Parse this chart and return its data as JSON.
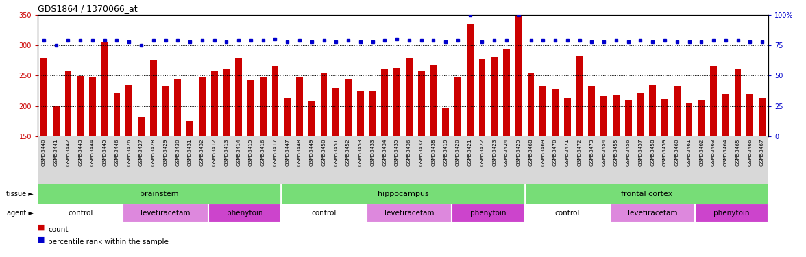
{
  "title": "GDS1864 / 1370066_at",
  "samples": [
    "GSM53440",
    "GSM53441",
    "GSM53442",
    "GSM53443",
    "GSM53444",
    "GSM53445",
    "GSM53446",
    "GSM53426",
    "GSM53427",
    "GSM53428",
    "GSM53429",
    "GSM53430",
    "GSM53431",
    "GSM53432",
    "GSM53412",
    "GSM53413",
    "GSM53414",
    "GSM53415",
    "GSM53416",
    "GSM53417",
    "GSM53447",
    "GSM53448",
    "GSM53449",
    "GSM53450",
    "GSM53451",
    "GSM53452",
    "GSM53453",
    "GSM53433",
    "GSM53434",
    "GSM53435",
    "GSM53436",
    "GSM53437",
    "GSM53438",
    "GSM53419",
    "GSM53420",
    "GSM53421",
    "GSM53422",
    "GSM53423",
    "GSM53424",
    "GSM53425",
    "GSM53468",
    "GSM53469",
    "GSM53470",
    "GSM53471",
    "GSM53472",
    "GSM53473",
    "GSM53454",
    "GSM53455",
    "GSM53456",
    "GSM53457",
    "GSM53458",
    "GSM53459",
    "GSM53460",
    "GSM53461",
    "GSM53462",
    "GSM53463",
    "GSM53464",
    "GSM53465",
    "GSM53466",
    "GSM53467"
  ],
  "count_values": [
    280,
    200,
    258,
    249,
    248,
    305,
    222,
    235,
    183,
    276,
    232,
    244,
    175,
    248,
    259,
    261,
    280,
    243,
    247,
    265,
    213,
    248,
    209,
    255,
    230,
    244,
    225,
    225,
    261,
    263,
    280,
    258,
    268,
    198,
    248,
    335,
    278,
    281,
    293,
    352,
    255,
    234,
    228,
    213,
    283,
    232,
    217,
    219,
    210,
    222,
    235,
    212,
    233,
    205,
    210,
    265,
    220,
    261,
    220,
    213
  ],
  "percentile_values": [
    79,
    75,
    79,
    79,
    79,
    79,
    79,
    78,
    75,
    79,
    79,
    79,
    78,
    79,
    79,
    78,
    79,
    79,
    79,
    80,
    78,
    79,
    78,
    79,
    78,
    79,
    78,
    78,
    79,
    80,
    79,
    79,
    79,
    78,
    79,
    100,
    78,
    79,
    79,
    100,
    79,
    79,
    79,
    79,
    79,
    78,
    78,
    79,
    78,
    79,
    78,
    79,
    78,
    78,
    78,
    79,
    79,
    79,
    78,
    78
  ],
  "ylim_left": [
    150,
    350
  ],
  "ylim_right": [
    0,
    100
  ],
  "yticks_left": [
    150,
    200,
    250,
    300,
    350
  ],
  "yticks_right": [
    0,
    25,
    50,
    75,
    100
  ],
  "bar_color": "#cc0000",
  "dot_color": "#0000cc",
  "gridline_values": [
    200,
    250,
    300
  ],
  "tissue_regions": [
    {
      "label": "brainstem",
      "start": 0,
      "end": 20
    },
    {
      "label": "hippocampus",
      "start": 20,
      "end": 40
    },
    {
      "label": "frontal cortex",
      "start": 40,
      "end": 60
    }
  ],
  "agent_regions": [
    {
      "label": "control",
      "start": 0,
      "end": 7,
      "color": "#ffffff"
    },
    {
      "label": "levetiracetam",
      "start": 7,
      "end": 14,
      "color": "#dd88dd"
    },
    {
      "label": "phenytoin",
      "start": 14,
      "end": 20,
      "color": "#cc44cc"
    },
    {
      "label": "control",
      "start": 20,
      "end": 27,
      "color": "#ffffff"
    },
    {
      "label": "levetiracetam",
      "start": 27,
      "end": 34,
      "color": "#dd88dd"
    },
    {
      "label": "phenytoin",
      "start": 34,
      "end": 40,
      "color": "#cc44cc"
    },
    {
      "label": "control",
      "start": 40,
      "end": 47,
      "color": "#ffffff"
    },
    {
      "label": "levetiracetam",
      "start": 47,
      "end": 54,
      "color": "#dd88dd"
    },
    {
      "label": "phenytoin",
      "start": 54,
      "end": 60,
      "color": "#cc44cc"
    }
  ],
  "tissue_color": "#77dd77",
  "tissue_label": "tissue",
  "agent_label": "agent",
  "legend_count_label": "count",
  "legend_percentile_label": "percentile rank within the sample",
  "bg_color": "#ffffff",
  "xtick_bg_color": "#d8d8d8",
  "plot_bg_color": "#ffffff"
}
